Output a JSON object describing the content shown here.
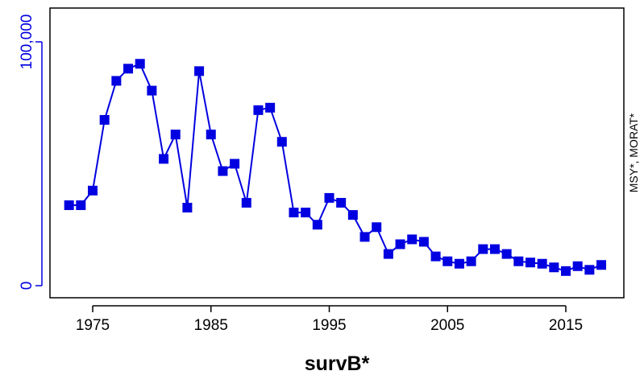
{
  "chart_data": {
    "type": "line",
    "title": "",
    "xlabel": "survB*",
    "ylabel": "",
    "y2label": "MSY*, MORAT*",
    "xlim": [
      1970.8,
      1774.2
    ],
    "ylim": [
      -5500,
      115000
    ],
    "xticks": [
      1975,
      1985,
      1995,
      2005,
      2015
    ],
    "xtick_labels": [
      "1975",
      "1985",
      "1995",
      "2005",
      "2015"
    ],
    "yticks": [
      0,
      100000
    ],
    "ytick_labels": [
      "0",
      "100,000"
    ],
    "grid": false,
    "legend": "none",
    "series": [
      {
        "color": "#0000e0",
        "marker": "square",
        "x": [
          1973,
          1974,
          1975,
          1976,
          1977,
          1978,
          1979,
          1980,
          1981,
          1982,
          1983,
          1984,
          1985,
          1986,
          1987,
          1988,
          1989,
          1990,
          1991,
          1992,
          1993,
          1994,
          1995,
          1996,
          1997,
          1998,
          1999,
          2000,
          2001,
          2002,
          2003,
          2004,
          2005,
          2006,
          2007,
          2008,
          2009,
          2010,
          2011,
          2012,
          2013,
          2014,
          2015,
          2016,
          2017,
          2018
        ],
        "y": [
          33000,
          33000,
          39000,
          68000,
          84000,
          89000,
          91000,
          80000,
          52000,
          62000,
          32000,
          88000,
          62000,
          47000,
          50000,
          34000,
          72000,
          73000,
          59000,
          30000,
          30000,
          25000,
          36000,
          34000,
          29000,
          20000,
          24000,
          13000,
          17000,
          19000,
          18000,
          12000,
          10000,
          9000,
          10000,
          15000,
          15000,
          13000,
          10000,
          9500,
          9000,
          7500,
          6000,
          8000,
          6500,
          8500
        ]
      }
    ]
  }
}
